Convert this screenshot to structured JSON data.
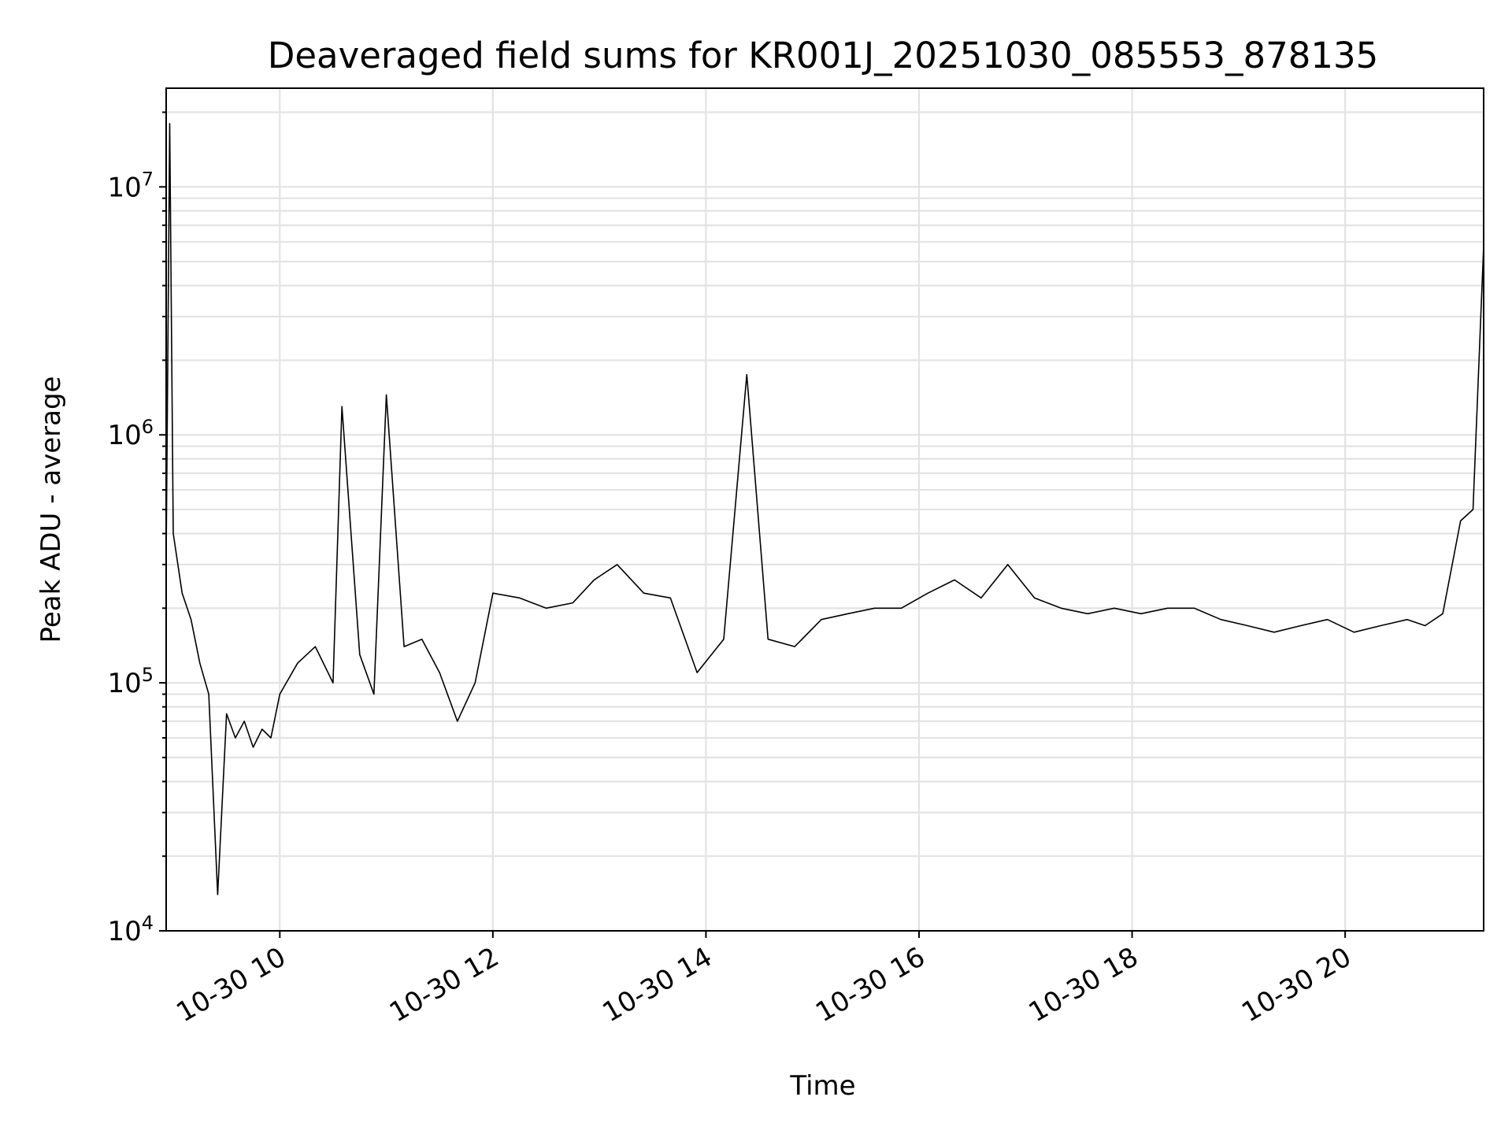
{
  "chart_data": {
    "type": "line",
    "title": "Deaveraged field sums for KR001J_20251030_085553_878135",
    "xlabel": "Time",
    "ylabel": "Peak ADU - average",
    "yscale": "log",
    "ylim": [
      10000,
      25000000
    ],
    "xlim": [
      "2025-10-30 08:56",
      "2025-10-30 21:18"
    ],
    "x_ticks": [
      {
        "value": "2025-10-30 10:00",
        "label": "10-30 10"
      },
      {
        "value": "2025-10-30 12:00",
        "label": "10-30 12"
      },
      {
        "value": "2025-10-30 14:00",
        "label": "10-30 14"
      },
      {
        "value": "2025-10-30 16:00",
        "label": "10-30 16"
      },
      {
        "value": "2025-10-30 18:00",
        "label": "10-30 18"
      },
      {
        "value": "2025-10-30 20:00",
        "label": "10-30 20"
      }
    ],
    "y_ticks": [
      {
        "value": 10000,
        "base": "10",
        "exp": "4"
      },
      {
        "value": 100000,
        "base": "10",
        "exp": "5"
      },
      {
        "value": 1000000,
        "base": "10",
        "exp": "6"
      },
      {
        "value": 10000000,
        "base": "10",
        "exp": "7"
      }
    ],
    "grid": true,
    "line_color": "#000000",
    "series": [
      {
        "x": [
          "2025-10-30 08:56",
          "2025-10-30 08:58",
          "2025-10-30 09:00",
          "2025-10-30 09:05",
          "2025-10-30 09:10",
          "2025-10-30 09:15",
          "2025-10-30 09:20",
          "2025-10-30 09:25",
          "2025-10-30 09:30",
          "2025-10-30 09:35",
          "2025-10-30 09:40",
          "2025-10-30 09:45",
          "2025-10-30 09:50",
          "2025-10-30 09:55",
          "2025-10-30 10:00",
          "2025-10-30 10:10",
          "2025-10-30 10:20",
          "2025-10-30 10:30",
          "2025-10-30 10:35",
          "2025-10-30 10:45",
          "2025-10-30 10:53",
          "2025-10-30 11:00",
          "2025-10-30 11:10",
          "2025-10-30 11:20",
          "2025-10-30 11:30",
          "2025-10-30 11:40",
          "2025-10-30 11:50",
          "2025-10-30 12:00",
          "2025-10-30 12:15",
          "2025-10-30 12:30",
          "2025-10-30 12:45",
          "2025-10-30 12:57",
          "2025-10-30 13:10",
          "2025-10-30 13:25",
          "2025-10-30 13:40",
          "2025-10-30 13:55",
          "2025-10-30 14:10",
          "2025-10-30 14:23",
          "2025-10-30 14:35",
          "2025-10-30 14:50",
          "2025-10-30 15:05",
          "2025-10-30 15:20",
          "2025-10-30 15:35",
          "2025-10-30 15:50",
          "2025-10-30 16:05",
          "2025-10-30 16:20",
          "2025-10-30 16:35",
          "2025-10-30 16:50",
          "2025-10-30 17:05",
          "2025-10-30 17:20",
          "2025-10-30 17:35",
          "2025-10-30 17:50",
          "2025-10-30 18:05",
          "2025-10-30 18:20",
          "2025-10-30 18:35",
          "2025-10-30 18:50",
          "2025-10-30 19:05",
          "2025-10-30 19:20",
          "2025-10-30 19:35",
          "2025-10-30 19:50",
          "2025-10-30 20:05",
          "2025-10-30 20:20",
          "2025-10-30 20:35",
          "2025-10-30 20:45",
          "2025-10-30 20:55",
          "2025-10-30 21:05",
          "2025-10-30 21:12",
          "2025-10-30 21:18"
        ],
        "y": [
          320000,
          18000000,
          400000,
          230000,
          180000,
          120000,
          90000,
          14000,
          75000,
          60000,
          70000,
          55000,
          65000,
          60000,
          90000,
          120000,
          140000,
          100000,
          1300000,
          130000,
          90000,
          1450000,
          140000,
          150000,
          110000,
          70000,
          100000,
          230000,
          220000,
          200000,
          210000,
          260000,
          300000,
          230000,
          220000,
          110000,
          150000,
          1750000,
          150000,
          140000,
          180000,
          190000,
          200000,
          200000,
          230000,
          260000,
          220000,
          300000,
          220000,
          200000,
          190000,
          200000,
          190000,
          200000,
          200000,
          180000,
          170000,
          160000,
          170000,
          180000,
          160000,
          170000,
          180000,
          170000,
          190000,
          450000,
          500000,
          5800000
        ]
      }
    ]
  }
}
